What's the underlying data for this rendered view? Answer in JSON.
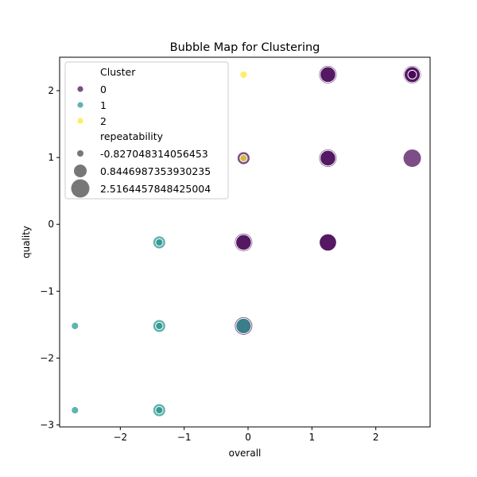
{
  "chart_data": {
    "type": "scatter",
    "title": "Bubble Map for Clustering",
    "xlabel": "overall",
    "ylabel": "quality",
    "xlim": [
      -2.95,
      2.85
    ],
    "ylim": [
      -3.03,
      2.5
    ],
    "xticks": [
      -2,
      -1,
      0,
      1,
      2
    ],
    "yticks": [
      -3,
      -2,
      -1,
      0,
      1,
      2
    ],
    "grid": false,
    "legend_position": "top-left",
    "hue_legend_title": "Cluster",
    "size_legend_title": "repeatability",
    "clusters": [
      {
        "label": "0",
        "color": "#440154"
      },
      {
        "label": "1",
        "color": "#21918c"
      },
      {
        "label": "2",
        "color": "#fde725"
      }
    ],
    "size_levels": [
      "-0.827048314056453",
      "0.8446987353930235",
      "2.5164457848425004"
    ],
    "size_range": [
      -0.827048314056453,
      2.5164457848425004
    ],
    "points": [
      {
        "x": 1.25,
        "y": 2.24,
        "cluster": "0",
        "size": 2.516
      },
      {
        "x": 1.25,
        "y": 2.24,
        "cluster": "0",
        "size": 1.7
      },
      {
        "x": 2.57,
        "y": 2.24,
        "cluster": "0",
        "size": 2.516
      },
      {
        "x": 2.57,
        "y": 2.24,
        "cluster": "0",
        "size": 1.8
      },
      {
        "x": 2.57,
        "y": 2.24,
        "cluster": "0",
        "size": -0.4
      },
      {
        "x": 1.25,
        "y": 0.99,
        "cluster": "0",
        "size": 2.516
      },
      {
        "x": 1.25,
        "y": 0.99,
        "cluster": "0",
        "size": 1.7
      },
      {
        "x": 2.57,
        "y": 0.99,
        "cluster": "0",
        "size": 2.516
      },
      {
        "x": -0.07,
        "y": 0.99,
        "cluster": "0",
        "size": 0.845
      },
      {
        "x": -0.07,
        "y": -0.27,
        "cluster": "0",
        "size": 2.516
      },
      {
        "x": -0.07,
        "y": -0.27,
        "cluster": "0",
        "size": 1.7
      },
      {
        "x": 1.25,
        "y": -0.27,
        "cluster": "0",
        "size": 2.516
      },
      {
        "x": 1.25,
        "y": -0.27,
        "cluster": "0",
        "size": 2.2
      },
      {
        "x": -0.07,
        "y": -1.52,
        "cluster": "0",
        "size": 2.516
      },
      {
        "x": -0.07,
        "y": 2.24,
        "cluster": "2",
        "size": -0.827
      },
      {
        "x": -0.07,
        "y": 0.99,
        "cluster": "2",
        "size": -0.827
      },
      {
        "x": -1.39,
        "y": -0.27,
        "cluster": "1",
        "size": 0.845
      },
      {
        "x": -1.39,
        "y": -0.27,
        "cluster": "1",
        "size": -0.827
      },
      {
        "x": -1.39,
        "y": -1.52,
        "cluster": "1",
        "size": 0.845
      },
      {
        "x": -1.39,
        "y": -1.52,
        "cluster": "1",
        "size": -0.827
      },
      {
        "x": -0.07,
        "y": -1.52,
        "cluster": "1",
        "size": 1.6
      },
      {
        "x": -2.71,
        "y": -1.52,
        "cluster": "1",
        "size": -0.827
      },
      {
        "x": -2.71,
        "y": -2.78,
        "cluster": "1",
        "size": -0.827
      },
      {
        "x": -1.39,
        "y": -2.78,
        "cluster": "1",
        "size": 0.845
      },
      {
        "x": -1.39,
        "y": -2.78,
        "cluster": "1",
        "size": -0.827
      }
    ]
  }
}
